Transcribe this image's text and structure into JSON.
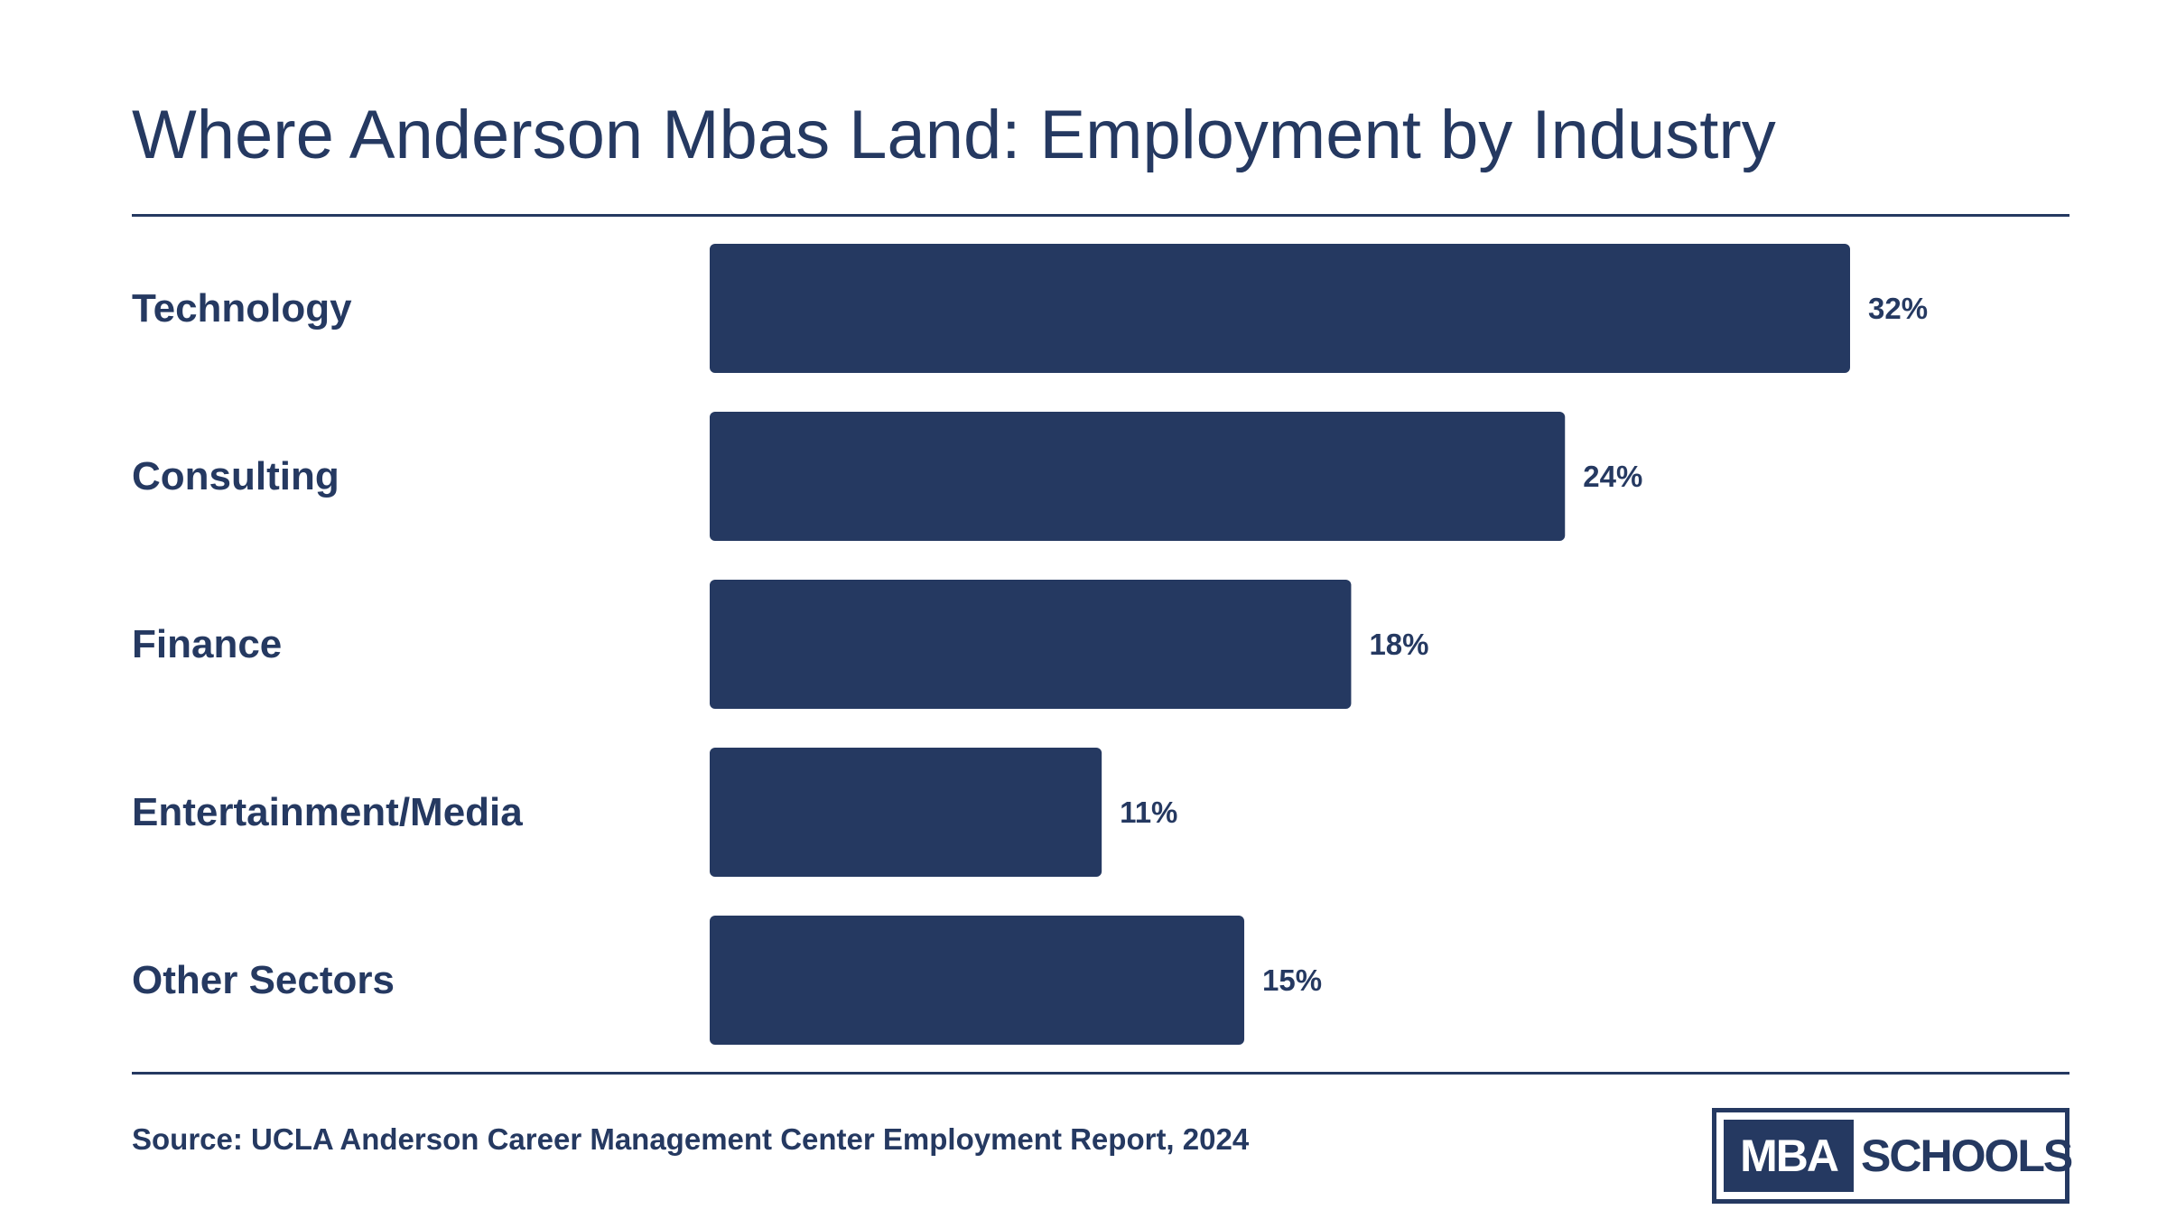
{
  "title": "Where Anderson Mbas Land: Employment by Industry",
  "source": "Source: UCLA Anderson Career Management Center Employment Report, 2024",
  "logo": {
    "left_text": "MBA",
    "right_text": "SCHOOLS"
  },
  "colors": {
    "primary": "#253961",
    "background": "#ffffff"
  },
  "chart_data": {
    "type": "bar",
    "orientation": "horizontal",
    "categories": [
      "Technology",
      "Consulting",
      "Finance",
      "Entertainment/Media",
      "Other Sectors"
    ],
    "values": [
      32,
      24,
      18,
      11,
      15
    ],
    "value_labels": [
      "32%",
      "24%",
      "18%",
      "11%",
      "15%"
    ],
    "unit": "%",
    "title": "Where Anderson Mbas Land: Employment by Industry",
    "xlabel": "",
    "ylabel": "",
    "xlim": [
      0,
      32
    ],
    "grid": false,
    "legend": "none",
    "bar_color": "#253961"
  }
}
